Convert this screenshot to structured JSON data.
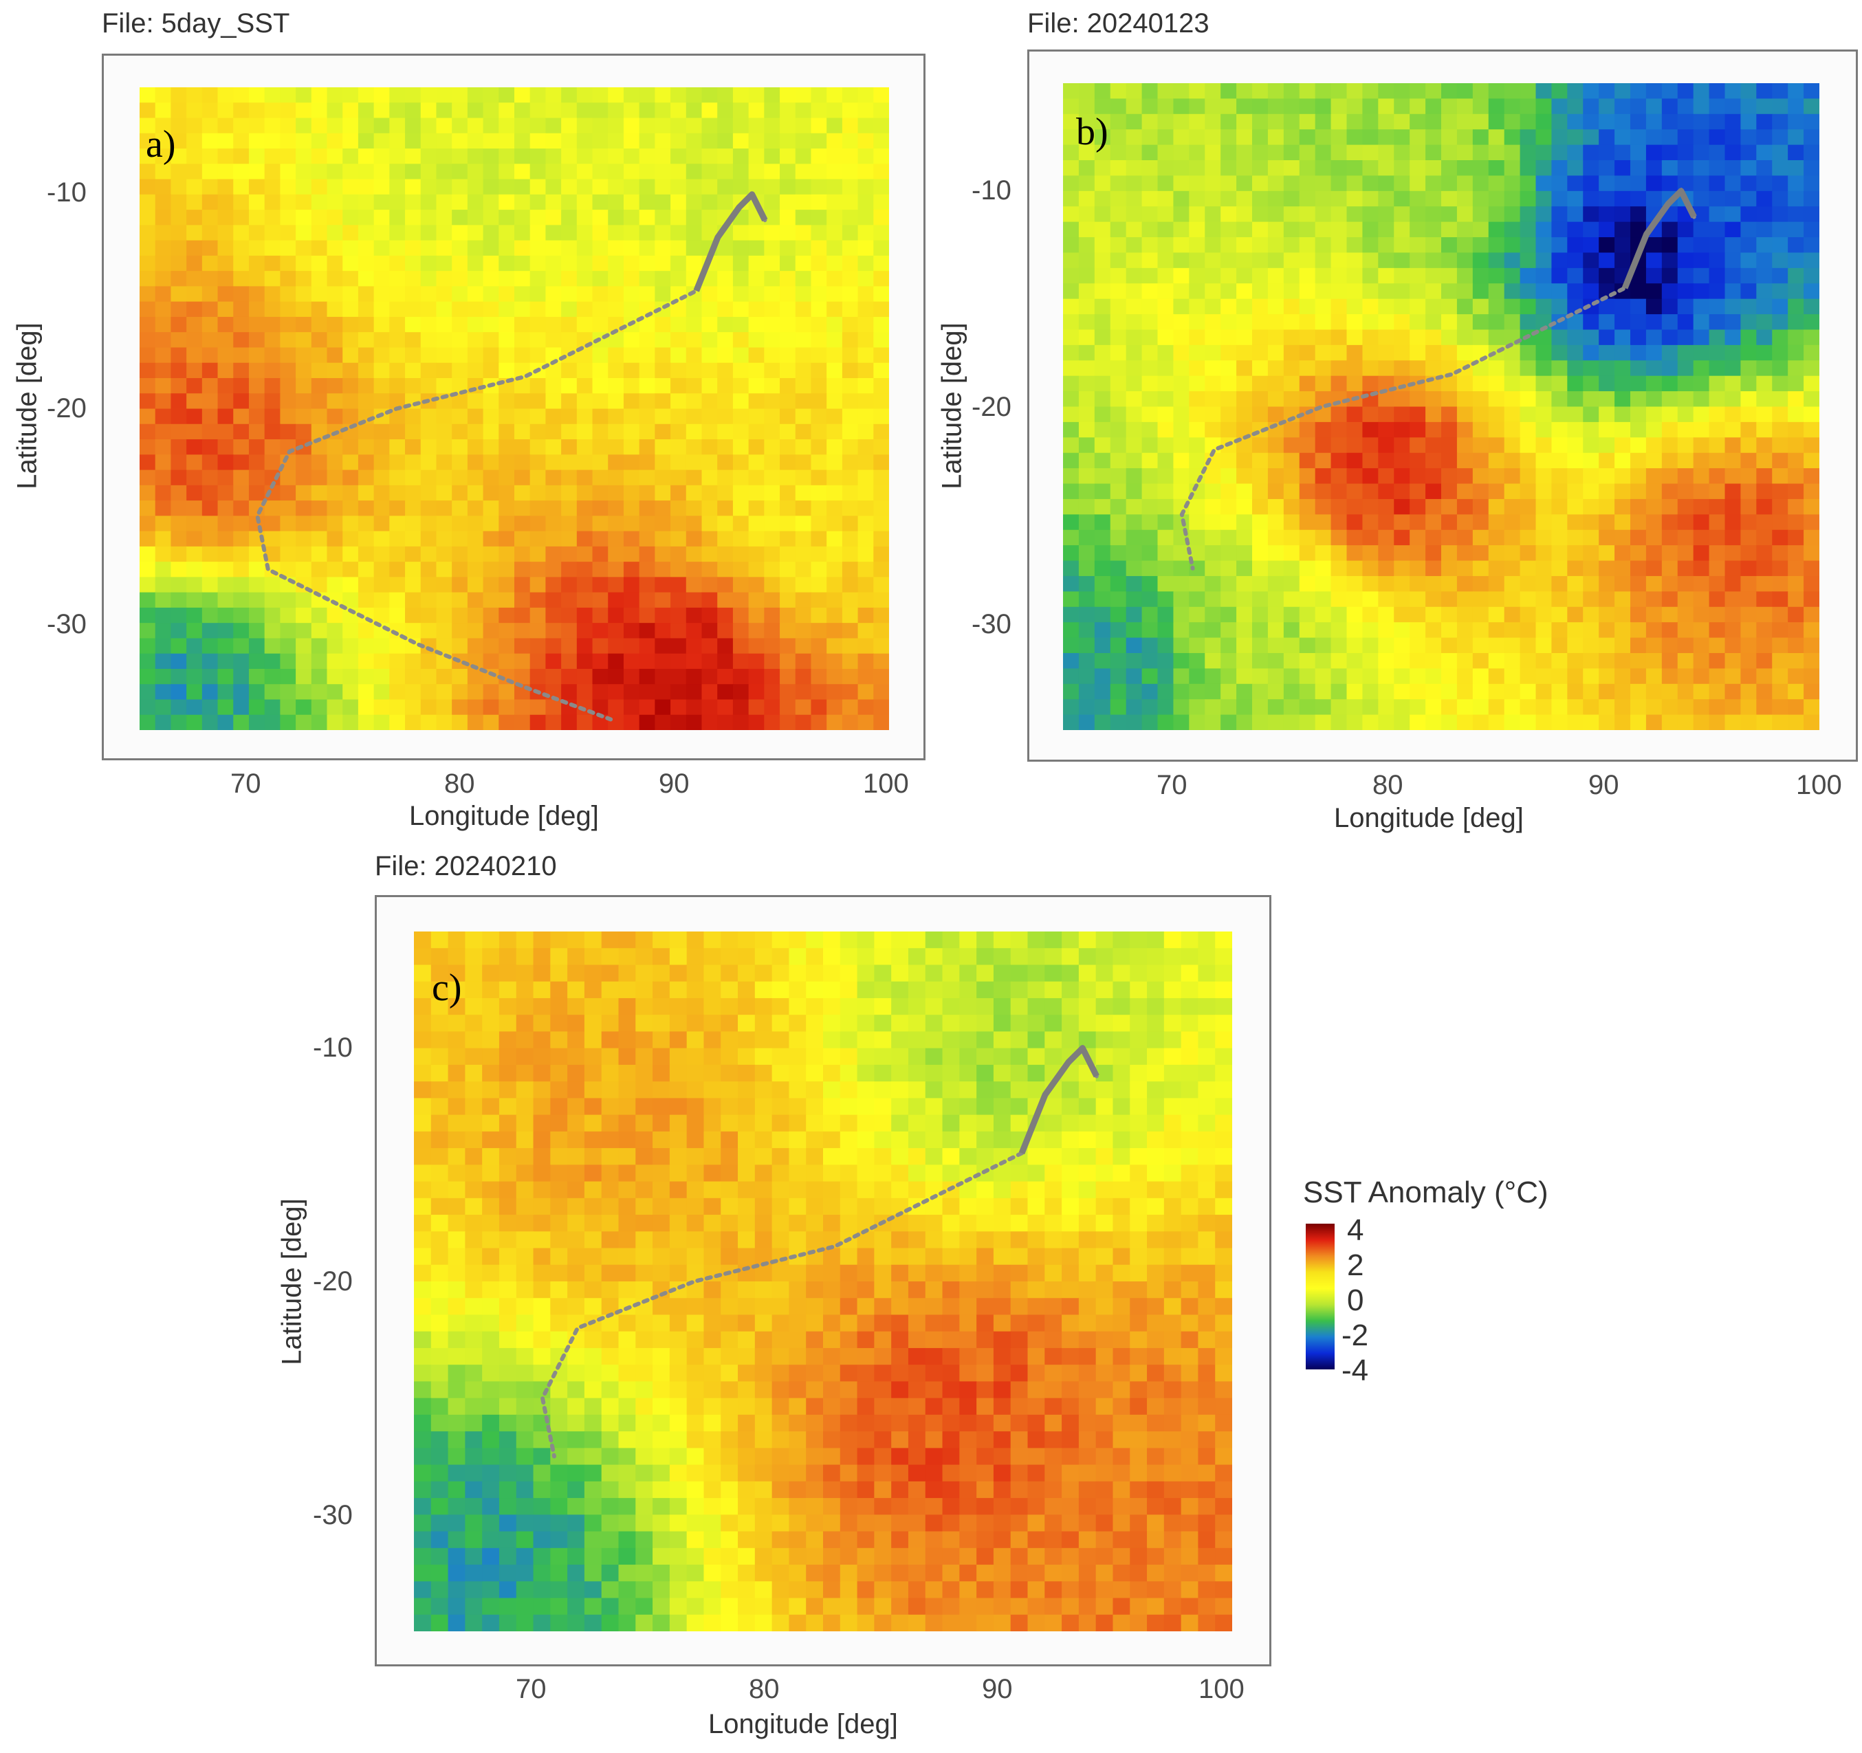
{
  "panels": [
    {
      "file_title": "File: 5day_SST",
      "panel_letter": "a)",
      "xlabel": "Longitude [deg]",
      "ylabel": "Latitude [deg]",
      "xticks": [
        "70",
        "80",
        "90",
        "100"
      ],
      "yticks": [
        "-10",
        "-20",
        "-30"
      ]
    },
    {
      "file_title": "File: 20240123",
      "panel_letter": "b)",
      "xlabel": "Longitude [deg]",
      "ylabel": "Latitude [deg]",
      "xticks": [
        "70",
        "80",
        "90",
        "100"
      ],
      "yticks": [
        "-10",
        "-20",
        "-30"
      ]
    },
    {
      "file_title": "File: 20240210",
      "panel_letter": "c)",
      "xlabel": "Longitude [deg]",
      "ylabel": "Latitude [deg]",
      "xticks": [
        "70",
        "80",
        "90",
        "100"
      ],
      "yticks": [
        "-10",
        "-20",
        "-30"
      ]
    }
  ],
  "legend": {
    "title": "SST Anomaly (°C)",
    "labels": [
      "4",
      "2",
      "0",
      "-2",
      "-4"
    ],
    "colors": [
      "#7a0000",
      "#e02010",
      "#f08a20",
      "#f7e21a",
      "#ffff20",
      "#b8e632",
      "#3bbf4a",
      "#1b7fd0",
      "#0a2ad8",
      "#05005a"
    ]
  },
  "chart_data": [
    {
      "type": "heatmap",
      "title": "File: 5day_SST",
      "panel": "a)",
      "xlabel": "Longitude [deg]",
      "ylabel": "Latitude [deg]",
      "xlim": [
        65,
        100
      ],
      "ylim": [
        -35,
        -5
      ],
      "variable": "SST Anomaly (°C)",
      "color_range": [
        -4,
        4
      ],
      "grid": true,
      "regions": [
        {
          "lon": 92,
          "lat": -10,
          "value": -0.5
        },
        {
          "lon": 80,
          "lat": -8,
          "value": -0.5
        },
        {
          "lon": 68,
          "lat": -22,
          "value": 2.5
        },
        {
          "lon": 90,
          "lat": -33,
          "value": 3.5
        },
        {
          "lon": 67,
          "lat": -33,
          "value": -2.5
        },
        {
          "lon": 96,
          "lat": -25,
          "value": 0.5
        }
      ],
      "track": [
        [
          94.2,
          -11.2
        ],
        [
          93.6,
          -10.0
        ],
        [
          93.0,
          -10.6
        ],
        [
          92.0,
          -12.0
        ],
        [
          91.0,
          -14.5
        ],
        [
          87.0,
          -16.5
        ],
        [
          83.0,
          -18.5
        ],
        [
          77.0,
          -20.0
        ],
        [
          72.0,
          -22.0
        ],
        [
          70.5,
          -25.0
        ],
        [
          71.0,
          -27.5
        ],
        [
          74.0,
          -29.0
        ],
        [
          78.0,
          -31.0
        ],
        [
          83.0,
          -33.0
        ],
        [
          87.0,
          -34.5
        ]
      ]
    },
    {
      "type": "heatmap",
      "title": "File: 20240123",
      "panel": "b)",
      "xlabel": "Longitude [deg]",
      "ylabel": "Latitude [deg]",
      "xlim": [
        65,
        100
      ],
      "ylim": [
        -35,
        -5
      ],
      "variable": "SST Anomaly (°C)",
      "color_range": [
        -4,
        4
      ],
      "grid": true,
      "regions": [
        {
          "lon": 94,
          "lat": -10,
          "value": -3.5
        },
        {
          "lon": 91.5,
          "lat": -13,
          "value": -4.5
        },
        {
          "lon": 82,
          "lat": -9,
          "value": -1.0
        },
        {
          "lon": 80,
          "lat": -23,
          "value": 3.0
        },
        {
          "lon": 96,
          "lat": -26,
          "value": 2.5
        },
        {
          "lon": 67,
          "lat": -32,
          "value": -2.5
        },
        {
          "lon": 74,
          "lat": -31,
          "value": -1.0
        }
      ],
      "track": [
        [
          94.2,
          -11.2
        ],
        [
          93.6,
          -10.0
        ],
        [
          93.0,
          -10.6
        ],
        [
          92.0,
          -12.0
        ],
        [
          91.0,
          -14.5
        ],
        [
          87.0,
          -16.5
        ],
        [
          83.0,
          -18.5
        ],
        [
          77.0,
          -20.0
        ],
        [
          72.0,
          -22.0
        ],
        [
          70.5,
          -25.0
        ],
        [
          71.0,
          -27.5
        ]
      ]
    },
    {
      "type": "heatmap",
      "title": "File: 20240210",
      "panel": "c)",
      "xlabel": "Longitude [deg]",
      "ylabel": "Latitude [deg]",
      "xlim": [
        65,
        100
      ],
      "ylim": [
        -35,
        -5
      ],
      "variable": "SST Anomaly (°C)",
      "color_range": [
        -4,
        4
      ],
      "grid": true,
      "regions": [
        {
          "lon": 90,
          "lat": -10,
          "value": -1.0
        },
        {
          "lon": 74,
          "lat": -14,
          "value": 1.5
        },
        {
          "lon": 88,
          "lat": -26,
          "value": 2.5
        },
        {
          "lon": 68,
          "lat": -32,
          "value": -2.5
        },
        {
          "lon": 96,
          "lat": -31,
          "value": 2.0
        }
      ],
      "track": [
        [
          94.2,
          -11.2
        ],
        [
          93.6,
          -10.0
        ],
        [
          93.0,
          -10.6
        ],
        [
          92.0,
          -12.0
        ],
        [
          91.0,
          -14.5
        ],
        [
          87.0,
          -16.5
        ],
        [
          83.0,
          -18.5
        ],
        [
          77.0,
          -20.0
        ],
        [
          72.0,
          -22.0
        ],
        [
          70.5,
          -25.0
        ],
        [
          71.0,
          -27.5
        ]
      ]
    }
  ]
}
